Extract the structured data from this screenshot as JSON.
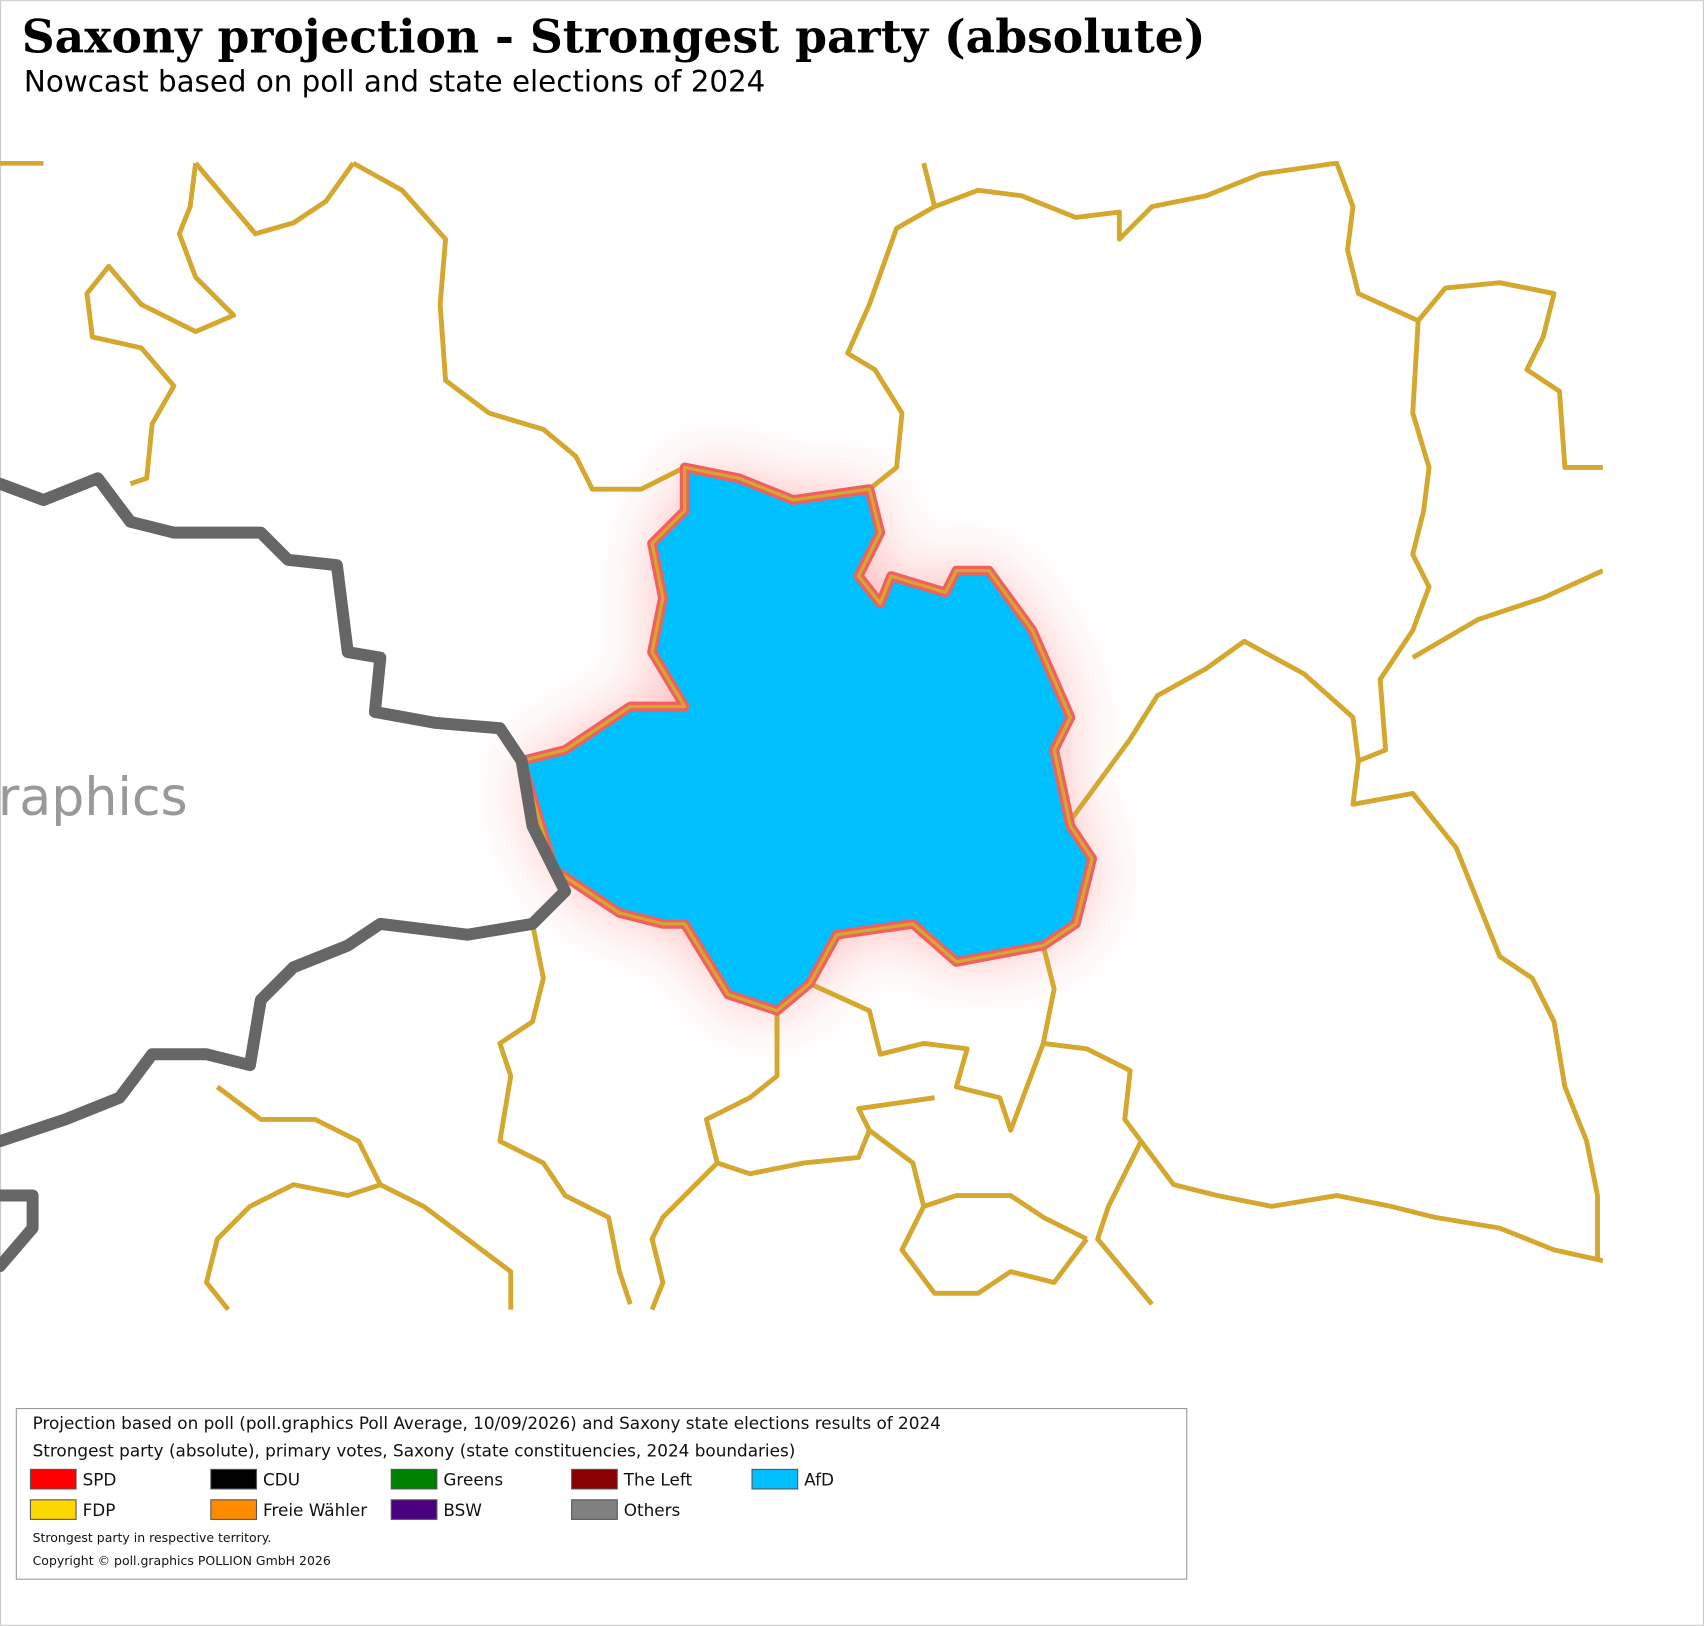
{
  "header": {
    "title": "Saxony projection - Strongest party (absolute)",
    "subtitle": "Nowcast based on poll and state elections of 2024"
  },
  "map": {
    "watermark": "raphics",
    "highlight_color": "#00bfff",
    "boundary_color": "#d4a82f",
    "state_border_color": "#666666"
  },
  "legend": {
    "source": "Projection based on poll (poll.graphics Poll Average, 10/09/2026) and Saxony state elections results of 2024",
    "description": "Strongest party (absolute), primary votes, Saxony (state constituencies, 2024 boundaries)",
    "entries": [
      {
        "name": "SPD",
        "color": "#ff0000"
      },
      {
        "name": "CDU",
        "color": "#000000"
      },
      {
        "name": "Greens",
        "color": "#008000"
      },
      {
        "name": "The Left",
        "color": "#8b0000"
      },
      {
        "name": "AfD",
        "color": "#00bfff"
      },
      {
        "name": "FDP",
        "color": "#ffd700"
      },
      {
        "name": "Freie Wähler",
        "color": "#ff8c00"
      },
      {
        "name": "BSW",
        "color": "#4b0082"
      },
      {
        "name": "Others",
        "color": "#808080"
      }
    ],
    "note": "Strongest party in respective territory.",
    "copyright": "Copyright © poll.graphics POLLION GmbH 2026"
  }
}
